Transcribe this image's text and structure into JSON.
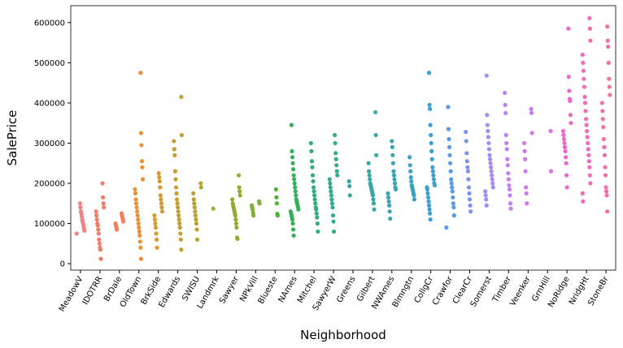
{
  "chart_data": {
    "type": "strip",
    "x_label": "Neighborhood",
    "y_label": "SalePrice",
    "categories": [
      "MeadowV",
      "IDOTRR",
      "BrDale",
      "OldTown",
      "BrkSide",
      "Edwards",
      "SWISU",
      "Landmrk",
      "Sawyer",
      "NPkVill",
      "Blueste",
      "NAmes",
      "Mitchel",
      "SawyerW",
      "Greens",
      "Gilbert",
      "NWAmes",
      "Blmngtn",
      "CollgCr",
      "Crawfor",
      "ClearCr",
      "Somerst",
      "Timber",
      "Veenker",
      "GrnHill",
      "NoRidge",
      "NridgHt",
      "StoneBr"
    ],
    "colors": [
      "#f0828a",
      "#f27c6c",
      "#f0805a",
      "#e8913a",
      "#d69a33",
      "#c39e33",
      "#b4a233",
      "#a4a633",
      "#97a932",
      "#7daf33",
      "#4fb433",
      "#34b05d",
      "#35ad7a",
      "#36ab8c",
      "#37a99a",
      "#38a7a6",
      "#39a5b2",
      "#3aa2bf",
      "#3c9fd0",
      "#5a99e8",
      "#7d92f0",
      "#a38cf4",
      "#bc82f4",
      "#cf78ee",
      "#dc70e0",
      "#f066c8",
      "#f46bb8",
      "#f56fa5"
    ],
    "values": [
      [
        75000,
        82000,
        88000,
        95000,
        100000,
        105000,
        110000,
        118000,
        125000,
        130000,
        140000,
        150000
      ],
      [
        12000,
        35000,
        40000,
        50000,
        60000,
        75000,
        85000,
        95000,
        100000,
        110000,
        120000,
        130000,
        140000,
        150000,
        165000,
        200000
      ],
      [
        85000,
        90000,
        95000,
        100000,
        105000,
        110000,
        115000,
        120000,
        125000
      ],
      [
        12000,
        40000,
        55000,
        70000,
        80000,
        90000,
        100000,
        110000,
        120000,
        130000,
        140000,
        150000,
        160000,
        175000,
        185000,
        210000,
        240000,
        255000,
        295000,
        325000,
        475000
      ],
      [
        40000,
        60000,
        75000,
        90000,
        100000,
        110000,
        120000,
        130000,
        140000,
        150000,
        160000,
        170000,
        190000,
        205000,
        215000,
        225000
      ],
      [
        35000,
        60000,
        75000,
        90000,
        100000,
        110000,
        120000,
        130000,
        140000,
        150000,
        160000,
        175000,
        190000,
        210000,
        230000,
        270000,
        285000,
        305000,
        320000,
        415000
      ],
      [
        60000,
        85000,
        100000,
        110000,
        120000,
        130000,
        140000,
        150000,
        160000,
        175000,
        190000,
        200000
      ],
      [
        137000
      ],
      [
        62000,
        65000,
        90000,
        100000,
        110000,
        120000,
        125000,
        130000,
        135000,
        140000,
        145000,
        150000,
        160000,
        170000,
        180000,
        190000,
        220000
      ],
      [
        120000,
        127000,
        135000,
        140000,
        145000,
        150000,
        155000
      ],
      [
        120000,
        124000,
        150000,
        165000,
        185000
      ],
      [
        70000,
        85000,
        100000,
        110000,
        115000,
        120000,
        125000,
        130000,
        135000,
        140000,
        145000,
        150000,
        155000,
        160000,
        170000,
        180000,
        190000,
        200000,
        210000,
        220000,
        235000,
        250000,
        265000,
        280000,
        345000
      ],
      [
        80000,
        100000,
        115000,
        125000,
        135000,
        140000,
        150000,
        160000,
        170000,
        180000,
        190000,
        205000,
        220000,
        240000,
        255000,
        280000,
        300000
      ],
      [
        80000,
        105000,
        120000,
        140000,
        150000,
        160000,
        170000,
        180000,
        190000,
        200000,
        210000,
        220000,
        230000,
        245000,
        260000,
        275000,
        300000,
        320000
      ],
      [
        170000,
        193000,
        205000
      ],
      [
        135000,
        150000,
        160000,
        170000,
        175000,
        180000,
        185000,
        190000,
        195000,
        200000,
        210000,
        220000,
        230000,
        250000,
        270000,
        320000,
        377000
      ],
      [
        112000,
        130000,
        145000,
        155000,
        165000,
        175000,
        185000,
        190000,
        200000,
        210000,
        220000,
        230000,
        250000,
        270000,
        290000,
        305000
      ],
      [
        160000,
        170000,
        175000,
        180000,
        185000,
        190000,
        195000,
        205000,
        215000,
        230000,
        245000,
        265000
      ],
      [
        110000,
        125000,
        135000,
        145000,
        155000,
        165000,
        175000,
        185000,
        190000,
        195000,
        200000,
        210000,
        220000,
        230000,
        240000,
        260000,
        280000,
        300000,
        320000,
        345000,
        385000,
        395000,
        475000
      ],
      [
        90000,
        120000,
        140000,
        150000,
        165000,
        180000,
        190000,
        200000,
        210000,
        230000,
        250000,
        270000,
        290000,
        310000,
        335000,
        390000
      ],
      [
        130000,
        145000,
        160000,
        175000,
        190000,
        210000,
        230000,
        240000,
        255000,
        275000,
        305000,
        328000
      ],
      [
        145000,
        160000,
        170000,
        180000,
        190000,
        200000,
        210000,
        220000,
        230000,
        240000,
        250000,
        260000,
        270000,
        285000,
        300000,
        315000,
        330000,
        345000,
        370000,
        468000
      ],
      [
        137000,
        150000,
        170000,
        185000,
        195000,
        210000,
        225000,
        245000,
        260000,
        285000,
        300000,
        320000,
        375000,
        395000,
        425000
      ],
      [
        150000,
        175000,
        190000,
        230000,
        260000,
        280000,
        300000,
        325000,
        375000,
        385000
      ],
      [
        230000,
        330000
      ],
      [
        190000,
        220000,
        250000,
        265000,
        280000,
        290000,
        300000,
        310000,
        320000,
        330000,
        350000,
        370000,
        405000,
        410000,
        430000,
        465000,
        585000
      ],
      [
        155000,
        175000,
        200000,
        220000,
        240000,
        255000,
        270000,
        285000,
        300000,
        315000,
        330000,
        345000,
        360000,
        380000,
        400000,
        415000,
        440000,
        460000,
        480000,
        500000,
        520000,
        555000,
        585000,
        611000
      ],
      [
        130000,
        170000,
        180000,
        190000,
        220000,
        240000,
        270000,
        290000,
        310000,
        340000,
        360000,
        380000,
        400000,
        420000,
        440000,
        460000,
        500000,
        540000,
        555000,
        590000
      ]
    ],
    "ylim": [
      -16000,
      642000
    ],
    "yticks": [
      0,
      100000,
      200000,
      300000,
      400000,
      500000,
      600000
    ]
  }
}
